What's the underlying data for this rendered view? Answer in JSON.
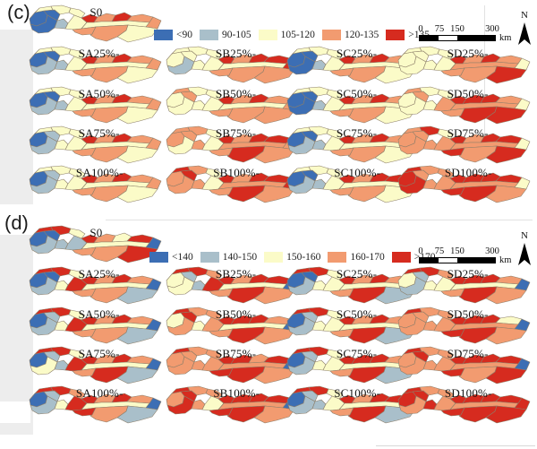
{
  "panels": [
    {
      "id": "c",
      "label": "(c)",
      "north_label": "N",
      "scalebar": {
        "ticks": [
          "0",
          "75",
          "150",
          "300"
        ],
        "unit": "km"
      },
      "legend": {
        "items": [
          {
            "label": "<90",
            "color": "#3c6eb4"
          },
          {
            "label": "90-105",
            "color": "#a9bfca"
          },
          {
            "label": "105-120",
            "color": "#fbfbc8"
          },
          {
            "label": "120-135",
            "color": "#f29b70"
          },
          {
            "label": ">135",
            "color": "#d62b1f"
          }
        ]
      },
      "maps": [
        {
          "label": "S0",
          "col": 0,
          "row": 0,
          "fills": [
            0,
            0,
            0,
            1,
            2,
            2,
            2,
            2,
            4,
            3,
            4,
            3,
            2,
            3,
            3,
            3,
            2
          ]
        },
        {
          "label": "SA25%-",
          "col": 0,
          "row": 1,
          "fills": [
            0,
            0,
            1,
            1,
            2,
            2,
            2,
            2,
            4,
            3,
            4,
            3,
            2,
            3,
            3,
            3,
            2
          ]
        },
        {
          "label": "SA50%-",
          "col": 0,
          "row": 2,
          "fills": [
            0,
            0,
            1,
            1,
            2,
            2,
            2,
            2,
            4,
            3,
            4,
            3,
            2,
            3,
            3,
            3,
            2
          ]
        },
        {
          "label": "SA75%-",
          "col": 0,
          "row": 3,
          "fills": [
            0,
            1,
            1,
            2,
            2,
            2,
            2,
            2,
            4,
            3,
            4,
            3,
            2,
            3,
            3,
            3,
            2
          ]
        },
        {
          "label": "SA100%-",
          "col": 0,
          "row": 4,
          "fills": [
            0,
            1,
            1,
            2,
            2,
            2,
            2,
            2,
            4,
            3,
            4,
            3,
            2,
            3,
            3,
            3,
            2
          ]
        },
        {
          "label": "SB25%-",
          "col": 1,
          "row": 1,
          "fills": [
            2,
            2,
            1,
            2,
            2,
            2,
            2,
            2,
            4,
            3,
            4,
            4,
            2,
            4,
            3,
            3,
            3
          ]
        },
        {
          "label": "SB50%-",
          "col": 1,
          "row": 2,
          "fills": [
            2,
            3,
            2,
            2,
            3,
            2,
            2,
            2,
            4,
            3,
            4,
            3,
            2,
            3,
            3,
            3,
            3
          ]
        },
        {
          "label": "SB75%-",
          "col": 1,
          "row": 3,
          "fills": [
            3,
            3,
            2,
            3,
            3,
            3,
            2,
            2,
            4,
            3,
            4,
            4,
            3,
            3,
            3,
            4,
            3
          ]
        },
        {
          "label": "SB100%-",
          "col": 1,
          "row": 4,
          "fills": [
            3,
            4,
            3,
            3,
            4,
            3,
            2,
            2,
            4,
            3,
            4,
            4,
            3,
            4,
            3,
            4,
            3
          ]
        },
        {
          "label": "SC25%-",
          "col": 2,
          "row": 1,
          "fills": [
            0,
            0,
            0,
            1,
            2,
            2,
            2,
            2,
            4,
            3,
            4,
            3,
            2,
            4,
            3,
            3,
            2
          ]
        },
        {
          "label": "SC50%-",
          "col": 2,
          "row": 2,
          "fills": [
            0,
            0,
            0,
            1,
            2,
            2,
            2,
            2,
            4,
            3,
            4,
            3,
            2,
            4,
            3,
            3,
            2
          ]
        },
        {
          "label": "SC75%-",
          "col": 2,
          "row": 3,
          "fills": [
            0,
            0,
            1,
            1,
            2,
            2,
            2,
            2,
            4,
            3,
            4,
            3,
            2,
            4,
            3,
            3,
            2
          ]
        },
        {
          "label": "SC100%-",
          "col": 2,
          "row": 4,
          "fills": [
            0,
            0,
            1,
            1,
            2,
            2,
            2,
            2,
            4,
            3,
            4,
            4,
            2,
            3,
            3,
            3,
            2
          ]
        },
        {
          "label": "SD25%-",
          "col": 3,
          "row": 1,
          "fills": [
            2,
            2,
            2,
            2,
            2,
            2,
            2,
            2,
            4,
            3,
            4,
            3,
            3,
            2,
            3,
            3,
            4
          ]
        },
        {
          "label": "SD50%-",
          "col": 3,
          "row": 2,
          "fills": [
            2,
            3,
            2,
            2,
            3,
            2,
            2,
            3,
            4,
            4,
            4,
            3,
            3,
            2,
            3,
            4,
            4
          ]
        },
        {
          "label": "SD75%-",
          "col": 3,
          "row": 3,
          "fills": [
            3,
            3,
            3,
            3,
            3,
            4,
            2,
            3,
            4,
            3,
            4,
            4,
            3,
            2,
            4,
            3,
            4
          ]
        },
        {
          "label": "SD100%-",
          "col": 3,
          "row": 4,
          "fills": [
            4,
            3,
            4,
            3,
            4,
            3,
            3,
            3,
            4,
            4,
            4,
            4,
            3,
            2,
            4,
            4,
            3
          ]
        }
      ]
    },
    {
      "id": "d",
      "label": "(d)",
      "north_label": "N",
      "scalebar": {
        "ticks": [
          "0",
          "75",
          "150",
          "300"
        ],
        "unit": "km"
      },
      "legend": {
        "items": [
          {
            "label": "<140",
            "color": "#3c6eb4"
          },
          {
            "label": "140-150",
            "color": "#a9bfca"
          },
          {
            "label": "150-160",
            "color": "#fbfbc8"
          },
          {
            "label": "160-170",
            "color": "#f29b70"
          },
          {
            "label": ">170",
            "color": "#d62b1f"
          }
        ]
      },
      "maps": [
        {
          "label": "S0",
          "col": 0,
          "row": 0,
          "fills": [
            0,
            0,
            1,
            1,
            4,
            4,
            2,
            1,
            4,
            3,
            2,
            4,
            2,
            0,
            3,
            3,
            4
          ]
        },
        {
          "label": "SA25%-",
          "col": 0,
          "row": 1,
          "fills": [
            0,
            0,
            1,
            2,
            4,
            4,
            2,
            4,
            4,
            3,
            4,
            3,
            2,
            0,
            3,
            3,
            1
          ]
        },
        {
          "label": "SA50%-",
          "col": 0,
          "row": 2,
          "fills": [
            0,
            1,
            1,
            2,
            4,
            4,
            2,
            4,
            4,
            3,
            4,
            3,
            2,
            0,
            3,
            3,
            1
          ]
        },
        {
          "label": "SA75%-",
          "col": 0,
          "row": 3,
          "fills": [
            0,
            1,
            2,
            1,
            4,
            4,
            2,
            4,
            4,
            3,
            4,
            3,
            2,
            0,
            3,
            4,
            1
          ]
        },
        {
          "label": "SA100%-",
          "col": 0,
          "row": 4,
          "fills": [
            0,
            1,
            1,
            2,
            4,
            4,
            3,
            4,
            4,
            3,
            4,
            3,
            2,
            0,
            4,
            3,
            1
          ]
        },
        {
          "label": "SB25%-",
          "col": 1,
          "row": 1,
          "fills": [
            2,
            1,
            2,
            1,
            4,
            4,
            3,
            4,
            4,
            3,
            4,
            4,
            2,
            0,
            3,
            4,
            3
          ]
        },
        {
          "label": "SB50%-",
          "col": 1,
          "row": 2,
          "fills": [
            2,
            4,
            3,
            2,
            4,
            3,
            3,
            3,
            4,
            4,
            4,
            3,
            2,
            0,
            3,
            4,
            3
          ]
        },
        {
          "label": "SB75%-",
          "col": 1,
          "row": 3,
          "fills": [
            3,
            3,
            3,
            3,
            4,
            3,
            3,
            3,
            4,
            4,
            3,
            4,
            3,
            0,
            4,
            4,
            3
          ]
        },
        {
          "label": "SB100%-",
          "col": 1,
          "row": 4,
          "fills": [
            3,
            4,
            4,
            3,
            4,
            3,
            3,
            2,
            4,
            4,
            4,
            4,
            3,
            0,
            4,
            4,
            3
          ]
        },
        {
          "label": "SC25%-",
          "col": 2,
          "row": 1,
          "fills": [
            0,
            0,
            1,
            2,
            4,
            4,
            2,
            2,
            4,
            3,
            4,
            3,
            2,
            0,
            3,
            4,
            1
          ]
        },
        {
          "label": "SC50%-",
          "col": 2,
          "row": 2,
          "fills": [
            0,
            1,
            1,
            2,
            4,
            4,
            2,
            2,
            4,
            3,
            4,
            3,
            2,
            0,
            3,
            4,
            1
          ]
        },
        {
          "label": "SC75%-",
          "col": 2,
          "row": 3,
          "fills": [
            0,
            1,
            1,
            2,
            4,
            4,
            2,
            2,
            4,
            4,
            4,
            3,
            2,
            0,
            3,
            4,
            1
          ]
        },
        {
          "label": "SC100%-",
          "col": 2,
          "row": 4,
          "fills": [
            0,
            1,
            1,
            1,
            4,
            4,
            2,
            2,
            4,
            3,
            4,
            4,
            2,
            0,
            3,
            4,
            1
          ]
        },
        {
          "label": "SD25%-",
          "col": 3,
          "row": 1,
          "fills": [
            2,
            1,
            1,
            2,
            4,
            4,
            3,
            2,
            4,
            4,
            4,
            3,
            2,
            0,
            3,
            4,
            3
          ]
        },
        {
          "label": "SD50%-",
          "col": 3,
          "row": 2,
          "fills": [
            3,
            3,
            3,
            3,
            4,
            3,
            3,
            3,
            4,
            4,
            4,
            2,
            3,
            0,
            4,
            4,
            3
          ]
        },
        {
          "label": "SD75%-",
          "col": 3,
          "row": 3,
          "fills": [
            3,
            4,
            3,
            3,
            4,
            3,
            3,
            3,
            4,
            4,
            4,
            4,
            3,
            0,
            4,
            3,
            4
          ]
        },
        {
          "label": "SD100%-",
          "col": 3,
          "row": 4,
          "fills": [
            4,
            4,
            3,
            4,
            4,
            3,
            3,
            3,
            4,
            4,
            4,
            4,
            3,
            4,
            4,
            4,
            4
          ]
        }
      ]
    }
  ]
}
